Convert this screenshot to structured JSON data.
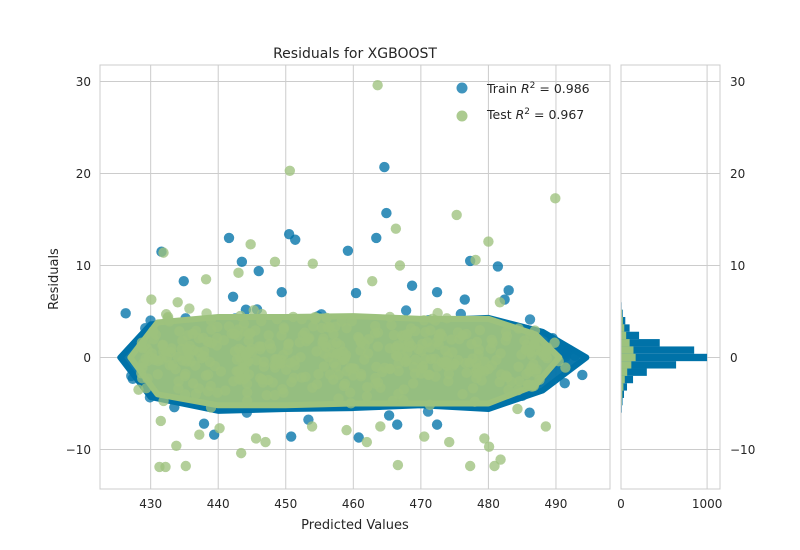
{
  "chart_data": {
    "type": "scatter",
    "title": "Residuals for XGBOOST",
    "xlabel": "Predicted Values",
    "ylabel": "Residuals",
    "xlim": [
      422.5,
      498
    ],
    "ylim": [
      -14.3,
      31.8
    ],
    "xticks": [
      430,
      440,
      450,
      460,
      470,
      480,
      490
    ],
    "yticks": [
      -10,
      0,
      10,
      20,
      30
    ],
    "grid": true,
    "legend_position": "top-right",
    "series": [
      {
        "name": "Train R² = 0.986",
        "name_base": "Train",
        "r2_label": "R",
        "r2_sup": "2",
        "r2_value": " = 0.986",
        "color": "#0072a8",
        "points": [
          [
            426.3,
            4.8
          ],
          [
            431.6,
            11.5
          ],
          [
            434.9,
            8.3
          ],
          [
            441.6,
            13.0
          ],
          [
            443.5,
            10.4
          ],
          [
            442.2,
            6.6
          ],
          [
            444.1,
            5.2
          ],
          [
            446.0,
            9.4
          ],
          [
            449.4,
            7.1
          ],
          [
            450.5,
            13.4
          ],
          [
            451.4,
            12.8
          ],
          [
            459.2,
            11.6
          ],
          [
            460.4,
            7.0
          ],
          [
            463.4,
            13.0
          ],
          [
            464.6,
            20.7
          ],
          [
            464.9,
            15.7
          ],
          [
            468.7,
            7.8
          ],
          [
            477.3,
            10.5
          ],
          [
            481.4,
            9.9
          ],
          [
            482.4,
            6.3
          ],
          [
            483.0,
            7.3
          ],
          [
            472.4,
            7.1
          ],
          [
            476.5,
            6.3
          ],
          [
            437.9,
            -7.2
          ],
          [
            439.4,
            -8.4
          ],
          [
            450.8,
            -8.6
          ],
          [
            460.8,
            -8.7
          ],
          [
            465.3,
            -6.3
          ],
          [
            466.5,
            -7.3
          ],
          [
            472.4,
            -7.3
          ],
          [
            486.1,
            -6.0
          ],
          [
            493.9,
            -1.9
          ],
          [
            491.3,
            -2.8
          ],
          [
            489.5,
            2.1
          ],
          [
            492.8,
            0.2
          ],
          [
            433.5,
            -5.4
          ],
          [
            429.7,
            1.0
          ],
          [
            434.2,
            -1.5
          ]
        ],
        "band": [
          [
            425.5,
            0
          ],
          [
            430,
            3.6
          ],
          [
            440,
            4.2
          ],
          [
            450,
            4.0
          ],
          [
            460,
            4.2
          ],
          [
            470,
            4.0
          ],
          [
            480,
            4.3
          ],
          [
            488,
            2.8
          ],
          [
            494.5,
            0
          ],
          [
            488,
            -3.6
          ],
          [
            480,
            -5.6
          ],
          [
            470,
            -5.2
          ],
          [
            460,
            -5.5
          ],
          [
            450,
            -5.6
          ],
          [
            440,
            -5.8
          ],
          [
            430,
            -4.3
          ]
        ]
      },
      {
        "name": "Test R² = 0.967",
        "name_base": "Test",
        "r2_label": "R",
        "r2_sup": "2",
        "r2_value": " = 0.967",
        "color": "#9dc27d",
        "points": [
          [
            463.6,
            29.6
          ],
          [
            450.6,
            20.3
          ],
          [
            489.9,
            17.3
          ],
          [
            475.3,
            15.5
          ],
          [
            466.3,
            14.0
          ],
          [
            480.0,
            12.6
          ],
          [
            444.8,
            12.3
          ],
          [
            448.4,
            10.4
          ],
          [
            431.9,
            11.4
          ],
          [
            438.2,
            8.5
          ],
          [
            443.0,
            9.2
          ],
          [
            454.0,
            10.2
          ],
          [
            462.8,
            8.3
          ],
          [
            466.9,
            10.0
          ],
          [
            478.1,
            10.6
          ],
          [
            481.7,
            6.0
          ],
          [
            435.2,
            -11.8
          ],
          [
            431.3,
            -11.9
          ],
          [
            432.2,
            -11.9
          ],
          [
            443.4,
            -10.4
          ],
          [
            466.6,
            -11.7
          ],
          [
            477.3,
            -11.8
          ],
          [
            480.9,
            -11.8
          ],
          [
            481.8,
            -11.1
          ],
          [
            474.2,
            -9.2
          ],
          [
            479.4,
            -8.8
          ],
          [
            480.1,
            -9.7
          ],
          [
            488.5,
            -7.5
          ],
          [
            431.5,
            -6.9
          ],
          [
            433.8,
            -9.6
          ],
          [
            437.2,
            -8.4
          ],
          [
            440.2,
            -7.7
          ],
          [
            445.6,
            -8.8
          ],
          [
            447.0,
            -9.2
          ],
          [
            453.9,
            -7.5
          ],
          [
            459.0,
            -7.9
          ],
          [
            462.0,
            -9.2
          ],
          [
            464.0,
            -7.5
          ],
          [
            470.5,
            -8.6
          ],
          [
            484.3,
            -5.6
          ],
          [
            430.1,
            6.3
          ],
          [
            432.3,
            4.7
          ],
          [
            434.0,
            6.0
          ],
          [
            428.2,
            -3.5
          ],
          [
            491.4,
            -1.1
          ],
          [
            489.8,
            1.6
          ],
          [
            490.4,
            -0.4
          ]
        ],
        "band": [
          [
            427,
            0
          ],
          [
            431,
            3.8
          ],
          [
            440,
            4.4
          ],
          [
            450,
            4.4
          ],
          [
            460,
            4.5
          ],
          [
            470,
            4.2
          ],
          [
            480,
            4.2
          ],
          [
            487,
            2.5
          ],
          [
            490.5,
            0
          ],
          [
            487,
            -3.0
          ],
          [
            480,
            -5.0
          ],
          [
            470,
            -5.0
          ],
          [
            460,
            -5.0
          ],
          [
            450,
            -5.2
          ],
          [
            440,
            -5.2
          ],
          [
            431,
            -4.0
          ]
        ]
      }
    ],
    "histogram": {
      "xlim": [
        0,
        1150
      ],
      "xticks": [
        0,
        1000
      ],
      "bin_width": 0.8,
      "bins": [
        {
          "y": -5.6,
          "train": 10,
          "test": 6
        },
        {
          "y": -4.8,
          "train": 18,
          "test": 10
        },
        {
          "y": -4.0,
          "train": 35,
          "test": 16
        },
        {
          "y": -3.2,
          "train": 70,
          "test": 28
        },
        {
          "y": -2.4,
          "train": 140,
          "test": 44
        },
        {
          "y": -1.6,
          "train": 300,
          "test": 72
        },
        {
          "y": -0.8,
          "train": 640,
          "test": 120
        },
        {
          "y": 0.0,
          "train": 1000,
          "test": 170
        },
        {
          "y": 0.8,
          "train": 850,
          "test": 145
        },
        {
          "y": 1.6,
          "train": 450,
          "test": 100
        },
        {
          "y": 2.4,
          "train": 210,
          "test": 60
        },
        {
          "y": 3.2,
          "train": 100,
          "test": 38
        },
        {
          "y": 4.0,
          "train": 50,
          "test": 22
        },
        {
          "y": 4.8,
          "train": 20,
          "test": 12
        },
        {
          "y": 5.6,
          "train": 8,
          "test": 5
        }
      ]
    }
  }
}
